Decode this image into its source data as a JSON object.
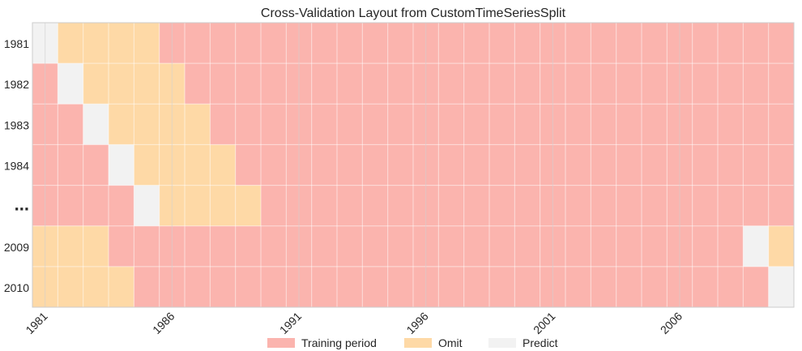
{
  "chart_data": {
    "type": "heatmap",
    "title": "Cross-Validation Layout from CustomTimeSeriesSplit",
    "xlabel": "",
    "ylabel": "",
    "x": [
      1981,
      1982,
      1983,
      1984,
      1985,
      1986,
      1987,
      1988,
      1989,
      1990,
      1991,
      1992,
      1993,
      1994,
      1995,
      1996,
      1997,
      1998,
      1999,
      2000,
      2001,
      2002,
      2003,
      2004,
      2005,
      2006,
      2007,
      2008,
      2009,
      2010
    ],
    "x_tick_labels": [
      "1981",
      "1986",
      "1991",
      "1996",
      "2001",
      "2006"
    ],
    "y_tick_labels": [
      "1981",
      "1982",
      "1983",
      "1984",
      "...",
      "2009",
      "2010"
    ],
    "categories": [
      "train",
      "omit",
      "predict"
    ],
    "legend": {
      "placement": "bottom-center",
      "entries": [
        {
          "key": "train",
          "label": "Training period",
          "color": "#fbb4ae"
        },
        {
          "key": "omit",
          "label": "Omit",
          "color": "#fed9a6"
        },
        {
          "key": "predict",
          "label": "Predict",
          "color": "#f2f2f2"
        }
      ]
    },
    "grid": true,
    "rows": [
      {
        "label": "1981",
        "predict": [
          1981
        ],
        "omit": [
          1982,
          1983,
          1984,
          1985
        ]
      },
      {
        "label": "1982",
        "predict": [
          1982
        ],
        "omit": [
          1983,
          1984,
          1985,
          1986
        ]
      },
      {
        "label": "1983",
        "predict": [
          1983
        ],
        "omit": [
          1984,
          1985,
          1986,
          1987
        ]
      },
      {
        "label": "1984",
        "predict": [
          1984
        ],
        "omit": [
          1985,
          1986,
          1987,
          1988
        ]
      },
      {
        "label": "...",
        "predict": [
          1985
        ],
        "omit": [
          1986,
          1987,
          1988,
          1989
        ]
      },
      {
        "label": "2009",
        "predict": [
          2009
        ],
        "omit": [
          2010,
          1981,
          1982,
          1983
        ]
      },
      {
        "label": "2010",
        "predict": [
          2010
        ],
        "omit": [
          1981,
          1982,
          1983,
          1984
        ]
      }
    ]
  }
}
